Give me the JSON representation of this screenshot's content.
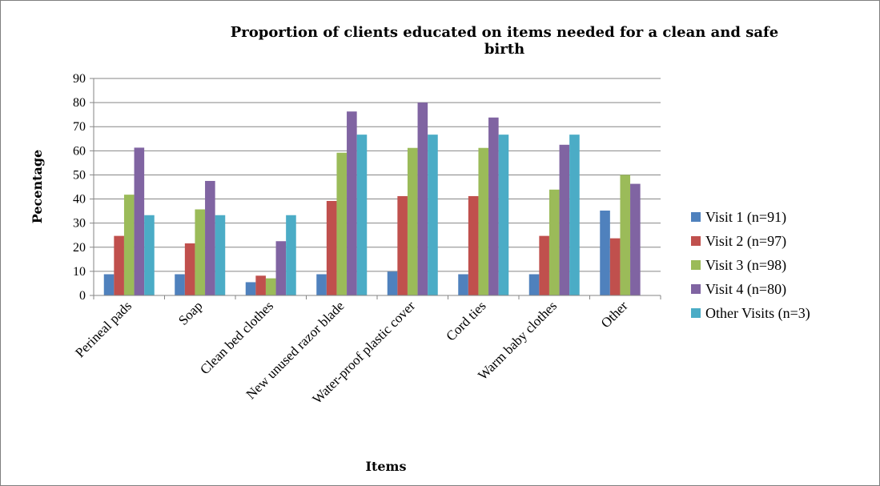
{
  "chart_data": {
    "type": "bar",
    "title_lines": [
      "Proportion of clients educated on items needed for a clean and safe",
      "birth"
    ],
    "xlabel": "Items",
    "ylabel": "Pecentage",
    "ylim": [
      0,
      90
    ],
    "yticks": [
      0,
      10,
      20,
      30,
      40,
      50,
      60,
      70,
      80,
      90
    ],
    "grid": true,
    "legend_position": "right",
    "categories": [
      "Perineal pads",
      "Soap",
      "Clean bed clothes",
      "New unused razor blade",
      "Water-proof plastic cover",
      "Cord ties",
      "Warm baby clothes",
      "Other"
    ],
    "series": [
      {
        "name": "Visit 1 (n=91)",
        "color": "#4f81bd",
        "values": [
          8.8,
          8.8,
          5.5,
          8.8,
          9.9,
          8.8,
          8.8,
          35.2
        ]
      },
      {
        "name": "Visit 2 (n=97)",
        "color": "#c0504d",
        "values": [
          24.7,
          21.6,
          8.2,
          39.2,
          41.2,
          41.2,
          24.7,
          23.7
        ]
      },
      {
        "name": "Visit 3 (n=98)",
        "color": "#9bbb59",
        "values": [
          41.8,
          35.7,
          7.1,
          59.2,
          61.2,
          61.2,
          43.9,
          50.0
        ]
      },
      {
        "name": "Visit 4 (n=80)",
        "color": "#8064a2",
        "values": [
          61.3,
          47.5,
          22.5,
          76.3,
          80.0,
          73.8,
          62.5,
          46.3
        ]
      },
      {
        "name": "Other Visits (n=3)",
        "color": "#4bacc6",
        "values": [
          33.3,
          33.3,
          33.3,
          66.7,
          66.7,
          66.7,
          66.7,
          null
        ]
      }
    ]
  }
}
